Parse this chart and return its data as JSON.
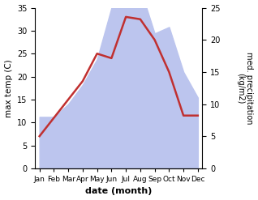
{
  "months": [
    "Jan",
    "Feb",
    "Mar",
    "Apr",
    "May",
    "Jun",
    "Jul",
    "Aug",
    "Sep",
    "Oct",
    "Nov",
    "Dec"
  ],
  "temp": [
    7,
    11,
    15,
    19,
    25,
    24,
    33,
    32.5,
    28,
    21,
    11.5,
    11.5
  ],
  "precip": [
    8,
    8,
    10,
    13,
    17,
    25,
    25,
    28,
    21,
    22,
    15,
    11
  ],
  "temp_color": "#c03030",
  "precip_fill_color": "#bcc5ee",
  "ylim_temp": [
    0,
    35
  ],
  "ylim_precip": [
    0,
    25
  ],
  "xlabel": "date (month)",
  "ylabel_left": "max temp (C)",
  "ylabel_right": "med. precipitation\n(kg/m2)",
  "temp_yticks": [
    0,
    5,
    10,
    15,
    20,
    25,
    30,
    35
  ],
  "precip_yticks": [
    0,
    5,
    10,
    15,
    20,
    25
  ]
}
